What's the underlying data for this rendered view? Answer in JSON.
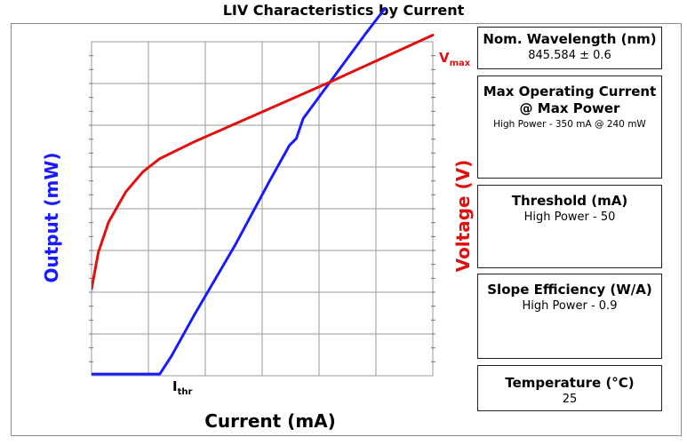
{
  "chart_data": {
    "type": "line",
    "title": "LIV Characteristics by Current",
    "xlabel": "Current (mA)",
    "ylabel_left": "Output (mW)",
    "ylabel_right": "Voltage (V)",
    "grid": true,
    "x_markers": {
      "threshold_label": "I",
      "threshold_sub": "thr"
    },
    "y_markers": {
      "vmax_label": "V",
      "vmax_sub": "max"
    },
    "series": [
      {
        "name": "Output",
        "axis": "left",
        "color": "#1a1aff",
        "points": [
          [
            0.0,
            0.005
          ],
          [
            0.2,
            0.005
          ],
          [
            0.235,
            0.06
          ],
          [
            0.3,
            0.18
          ],
          [
            0.42,
            0.39
          ],
          [
            0.52,
            0.58
          ],
          [
            0.58,
            0.69
          ],
          [
            0.6,
            0.71
          ],
          [
            0.62,
            0.77
          ],
          [
            0.8,
            1.02
          ],
          [
            0.86,
            1.1
          ]
        ]
      },
      {
        "name": "Voltage",
        "axis": "right",
        "color": "#e01010",
        "points": [
          [
            0.0,
            0.26
          ],
          [
            0.02,
            0.37
          ],
          [
            0.05,
            0.46
          ],
          [
            0.1,
            0.55
          ],
          [
            0.15,
            0.61
          ],
          [
            0.2,
            0.65
          ],
          [
            0.3,
            0.7
          ],
          [
            0.5,
            0.79
          ],
          [
            0.7,
            0.88
          ],
          [
            0.85,
            0.95
          ],
          [
            1.0,
            1.02
          ]
        ]
      }
    ]
  },
  "info_boxes": [
    {
      "title": "Nom. Wavelength (nm)",
      "value": "845.584 ± 0.6",
      "small": ""
    },
    {
      "title": "Max Operating Current @ Max Power",
      "value": "",
      "small": "High Power - 350 mA @ 240 mW"
    },
    {
      "title": "Threshold (mA)",
      "value": "High Power - 50",
      "small": ""
    },
    {
      "title": "Slope Efficiency (W/A)",
      "value": "High Power - 0.9",
      "small": ""
    },
    {
      "title": "Temperature (°C)",
      "value": "25",
      "small": ""
    }
  ]
}
